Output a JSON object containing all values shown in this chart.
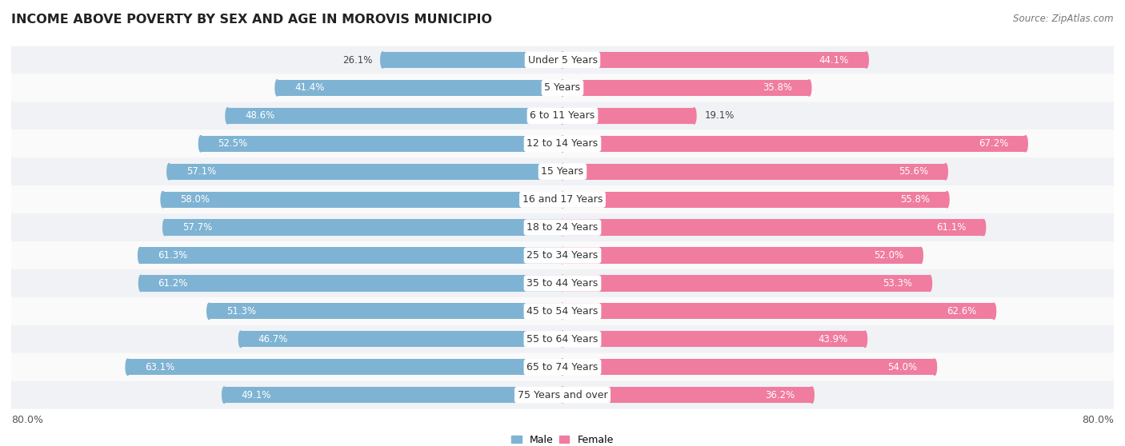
{
  "title": "INCOME ABOVE POVERTY BY SEX AND AGE IN MOROVIS MUNICIPIO",
  "source": "Source: ZipAtlas.com",
  "categories": [
    "Under 5 Years",
    "5 Years",
    "6 to 11 Years",
    "12 to 14 Years",
    "15 Years",
    "16 and 17 Years",
    "18 to 24 Years",
    "25 to 34 Years",
    "35 to 44 Years",
    "45 to 54 Years",
    "55 to 64 Years",
    "65 to 74 Years",
    "75 Years and over"
  ],
  "male_values": [
    26.1,
    41.4,
    48.6,
    52.5,
    57.1,
    58.0,
    57.7,
    61.3,
    61.2,
    51.3,
    46.7,
    63.1,
    49.1
  ],
  "female_values": [
    44.1,
    35.8,
    19.1,
    67.2,
    55.6,
    55.8,
    61.1,
    52.0,
    53.3,
    62.6,
    43.9,
    54.0,
    36.2
  ],
  "male_color": "#7fb3d3",
  "female_color": "#f07ca0",
  "male_color_light": "#b8d4e8",
  "female_color_light": "#f7b8cc",
  "row_bg_even": "#f0f2f5",
  "row_bg_odd": "#fafafa",
  "xlim": 80.0,
  "bar_height": 0.58,
  "title_fontsize": 11.5,
  "label_fontsize": 9.0,
  "value_fontsize": 8.5,
  "source_fontsize": 8.5,
  "legend_labels": [
    "Male",
    "Female"
  ]
}
